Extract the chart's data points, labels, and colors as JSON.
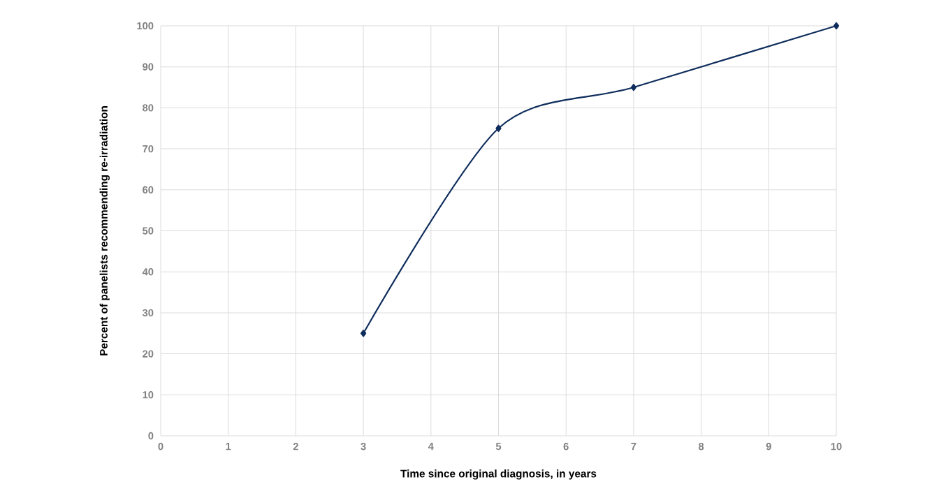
{
  "chart_data": {
    "type": "line",
    "xlabel": "Time since original diagnosis, in years",
    "ylabel": "Percent of panelists recommending re-irradiation",
    "x": [
      3,
      5,
      7,
      10
    ],
    "series": [
      {
        "color": "#0e2d5c",
        "values": [
          25,
          75,
          85,
          100
        ]
      }
    ],
    "xlim": [
      0,
      10
    ],
    "xticks": [
      0,
      1,
      2,
      3,
      4,
      5,
      6,
      7,
      8,
      9,
      10
    ],
    "ylim": [
      0,
      100
    ],
    "yticks": [
      0,
      10,
      20,
      30,
      40,
      50,
      60,
      70,
      80,
      90,
      100
    ],
    "grid": true,
    "marker": "diamond",
    "line_style": "solid"
  }
}
